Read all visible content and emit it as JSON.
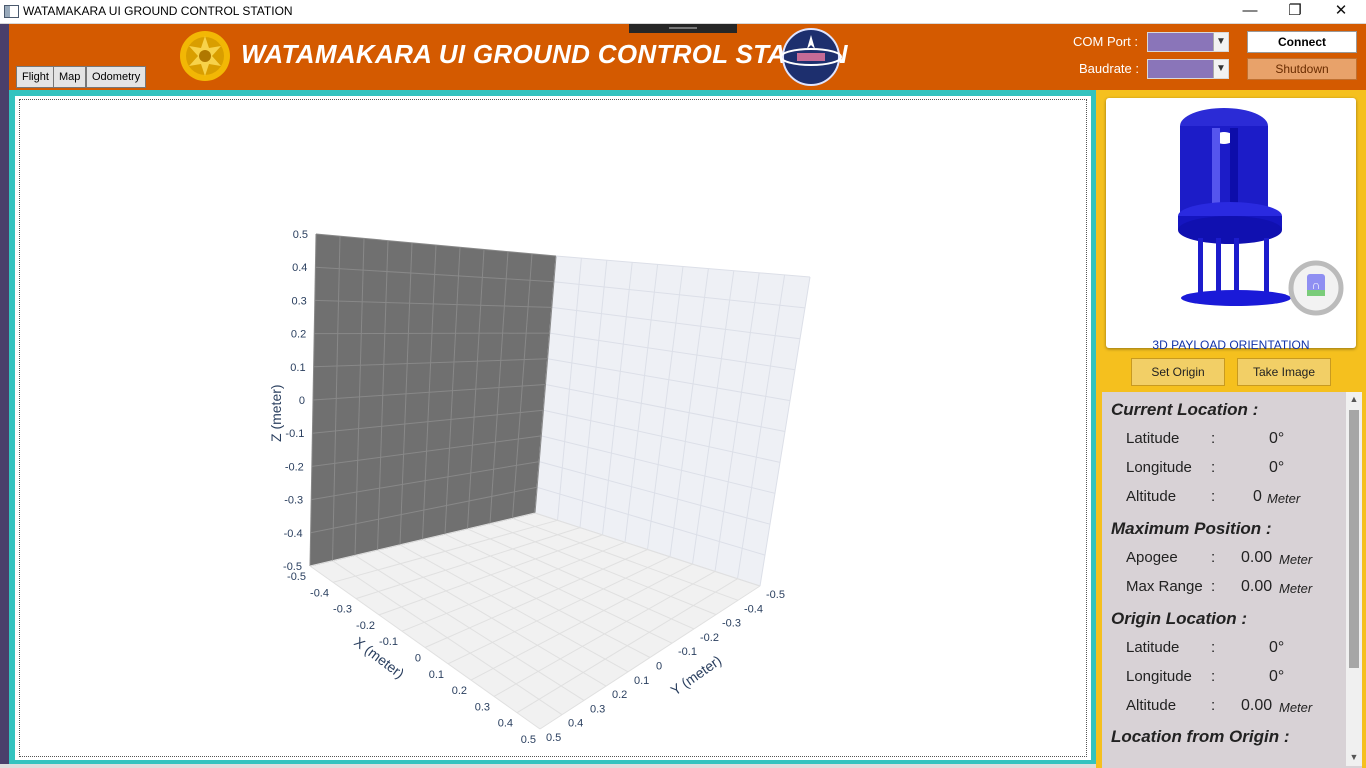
{
  "window": {
    "title": "WATAMAKARA UI GROUND CONTROL STATION",
    "minimize": "—",
    "maximize": "❐",
    "close": "✕"
  },
  "tabs": [
    {
      "label": "Flight"
    },
    {
      "label": "Map"
    },
    {
      "label": "Odometry"
    }
  ],
  "header": {
    "title": "WATAMAKARA UI GROUND CONTROL STATION",
    "com_port_label": "COM Port :",
    "baudrate_label": "Baudrate :",
    "com_port_value": "",
    "baudrate_value": "",
    "connect_label": "Connect",
    "shutdown_label": "Shutdown",
    "accent_color": "#d45a00"
  },
  "chart_data": {
    "type": "scatter3d",
    "xlabel": "X (meter)",
    "ylabel": "Y (meter)",
    "zlabel": "Z (meter)",
    "xlim": [
      -0.5,
      0.5
    ],
    "ylim": [
      -0.5,
      0.5
    ],
    "zlim": [
      -0.5,
      0.5
    ],
    "x_ticks": [
      "-0.5",
      "-0.4",
      "-0.3",
      "-0.2",
      "-0.1",
      "0",
      "0.1",
      "0.2",
      "0.3",
      "0.4",
      "0.5"
    ],
    "y_ticks": [
      "-0.5",
      "-0.4",
      "-0.3",
      "-0.2",
      "-0.1",
      "0",
      "0.1",
      "0.2",
      "0.3",
      "0.4",
      "0.5"
    ],
    "z_ticks": [
      "-0.5",
      "-0.4",
      "-0.3",
      "-0.2",
      "-0.1",
      "0",
      "0.1",
      "0.2",
      "0.3",
      "0.4",
      "0.5"
    ],
    "series": [],
    "grid": true
  },
  "payload": {
    "title": "3D PAYLOAD ORIENTATION",
    "model_color": "#1a1ae6"
  },
  "actions": {
    "set_origin": "Set Origin",
    "take_image": "Take Image"
  },
  "info": {
    "current_location": {
      "title": "Current Location :",
      "latitude_label": "Latitude",
      "latitude": "0°",
      "longitude_label": "Longitude",
      "longitude": "0°",
      "altitude_label": "Altitude",
      "altitude": "0",
      "altitude_unit": "Meter"
    },
    "maximum_position": {
      "title": "Maximum Position :",
      "apogee_label": "Apogee",
      "apogee": "0.00",
      "apogee_unit": "Meter",
      "max_range_label": "Max Range",
      "max_range": "0.00",
      "max_range_unit": "Meter"
    },
    "origin_location": {
      "title": "Origin Location :",
      "latitude_label": "Latitude",
      "latitude": "0°",
      "longitude_label": "Longitude",
      "longitude": "0°",
      "altitude_label": "Altitude",
      "altitude": "0.00",
      "altitude_unit": "Meter"
    },
    "location_from_origin": {
      "title": "Location from Origin :"
    },
    "colon": ":"
  }
}
